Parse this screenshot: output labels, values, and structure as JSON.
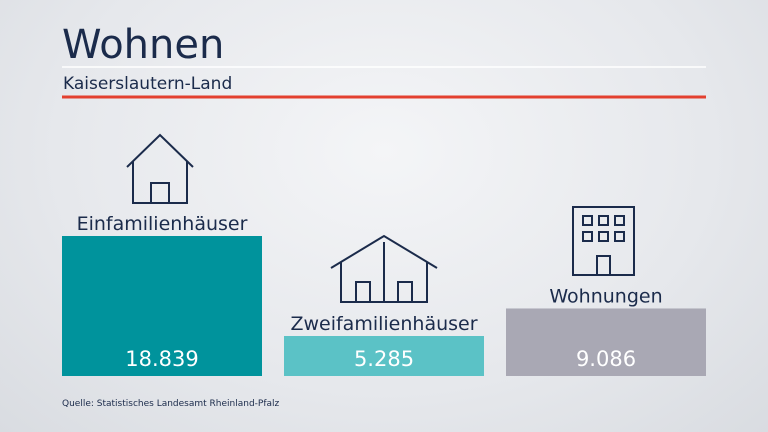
{
  "header": {
    "title": "Wohnen",
    "subtitle": "Kaiserslautern-Land"
  },
  "chart_data": {
    "type": "bar",
    "title": "Wohnen",
    "subtitle": "Kaiserslautern-Land",
    "categories": [
      "Einfamilienhäuser",
      "Zweifamilienhäuser",
      "Wohnungen"
    ],
    "values": [
      18839,
      5285,
      9086
    ],
    "value_labels": [
      "18.839",
      "5.285",
      "9.086"
    ],
    "colors": [
      "#00939c",
      "#5bc2c6",
      "#a9a8b4"
    ],
    "icons": [
      "house-icon",
      "two-family-house-icon",
      "apartment-building-icon"
    ],
    "ylim": [
      0,
      18839
    ],
    "grid": false,
    "legend": "none"
  },
  "colors": {
    "title": "#1b2b4b",
    "rule_light": "#ffffff",
    "rule_accent": "#e3402f"
  },
  "source": "Quelle: Statistisches Landesamt Rheinland-Pfalz"
}
